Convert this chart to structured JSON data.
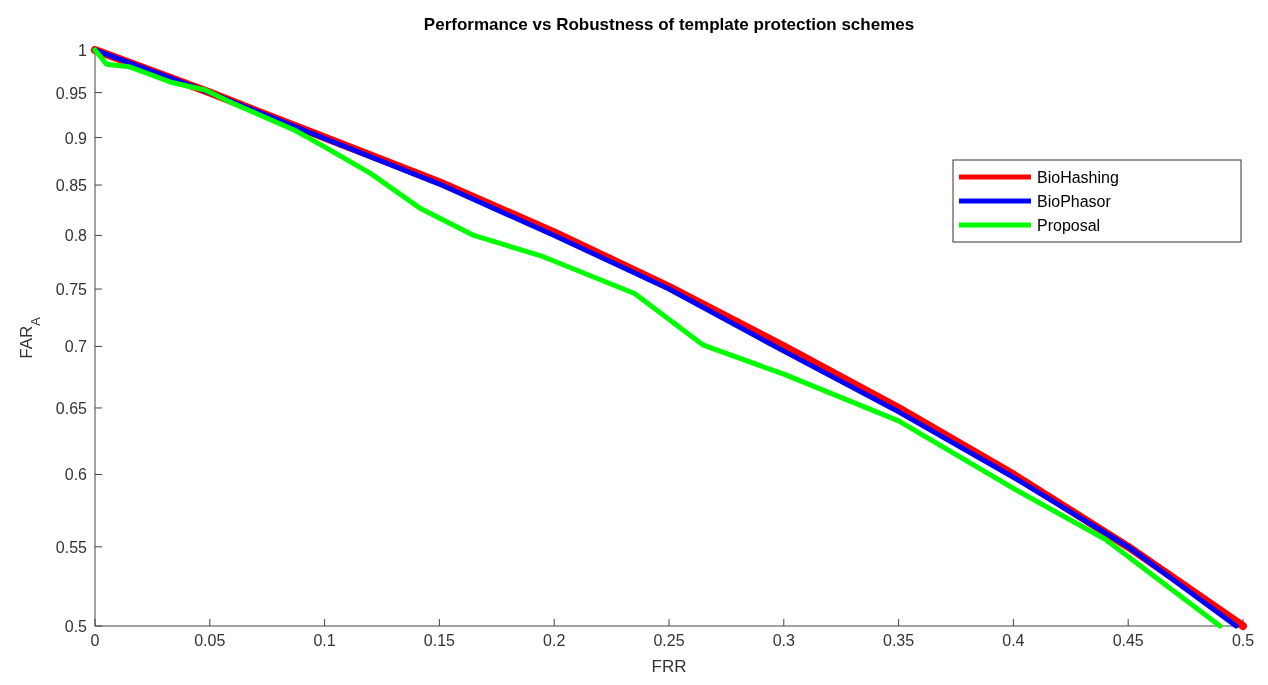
{
  "chart_data": {
    "type": "line",
    "title": "Performance vs Robustness of template protection schemes",
    "xlabel": "FRR",
    "ylabel": "FAR$_{A}$",
    "log": "y",
    "xlim": [
      0,
      0.5
    ],
    "xticks": [
      0,
      0.05,
      0.1,
      0.15,
      0.2,
      0.25,
      0.3,
      0.35,
      0.4,
      0.45,
      0.5
    ],
    "ylim": [
      0.5,
      1
    ],
    "yticks": [
      0.5,
      0.55,
      0.6,
      0.65,
      0.7,
      0.75,
      0.8,
      0.85,
      0.9,
      0.95,
      1
    ],
    "legend": "top right",
    "grid": false,
    "line_style": "solid",
    "marker": "none",
    "series": [
      {
        "name": "BioHashing",
        "color": "#ff0000",
        "x": [
          0,
          0.05,
          0.1,
          0.15,
          0.2,
          0.25,
          0.3,
          0.35,
          0.4,
          0.45,
          0.5
        ],
        "values": [
          1,
          0.95,
          0.9,
          0.853,
          0.803,
          0.752,
          0.7,
          0.65,
          0.6,
          0.55,
          0.5
        ]
      },
      {
        "name": "BioPhasor",
        "color": "#0000ff",
        "x": [
          0,
          0.05,
          0.1,
          0.15,
          0.2,
          0.25,
          0.3,
          0.35,
          0.4,
          0.45,
          0.497
        ],
        "values": [
          1,
          0.95,
          0.899,
          0.851,
          0.8,
          0.75,
          0.696,
          0.647,
          0.598,
          0.55,
          0.5
        ]
      },
      {
        "name": "Proposal",
        "color": "#00ff00",
        "x": [
          0,
          0.003,
          0.005,
          0.015,
          0.022,
          0.033,
          0.048,
          0.06,
          0.087,
          0.1,
          0.12,
          0.142,
          0.165,
          0.195,
          0.235,
          0.265,
          0.3,
          0.35,
          0.4,
          0.44,
          0.49
        ],
        "values": [
          1,
          0.99,
          0.983,
          0.98,
          0.973,
          0.962,
          0.953,
          0.938,
          0.908,
          0.89,
          0.862,
          0.826,
          0.8,
          0.78,
          0.746,
          0.701,
          0.677,
          0.64,
          0.59,
          0.555,
          0.5
        ]
      }
    ]
  }
}
